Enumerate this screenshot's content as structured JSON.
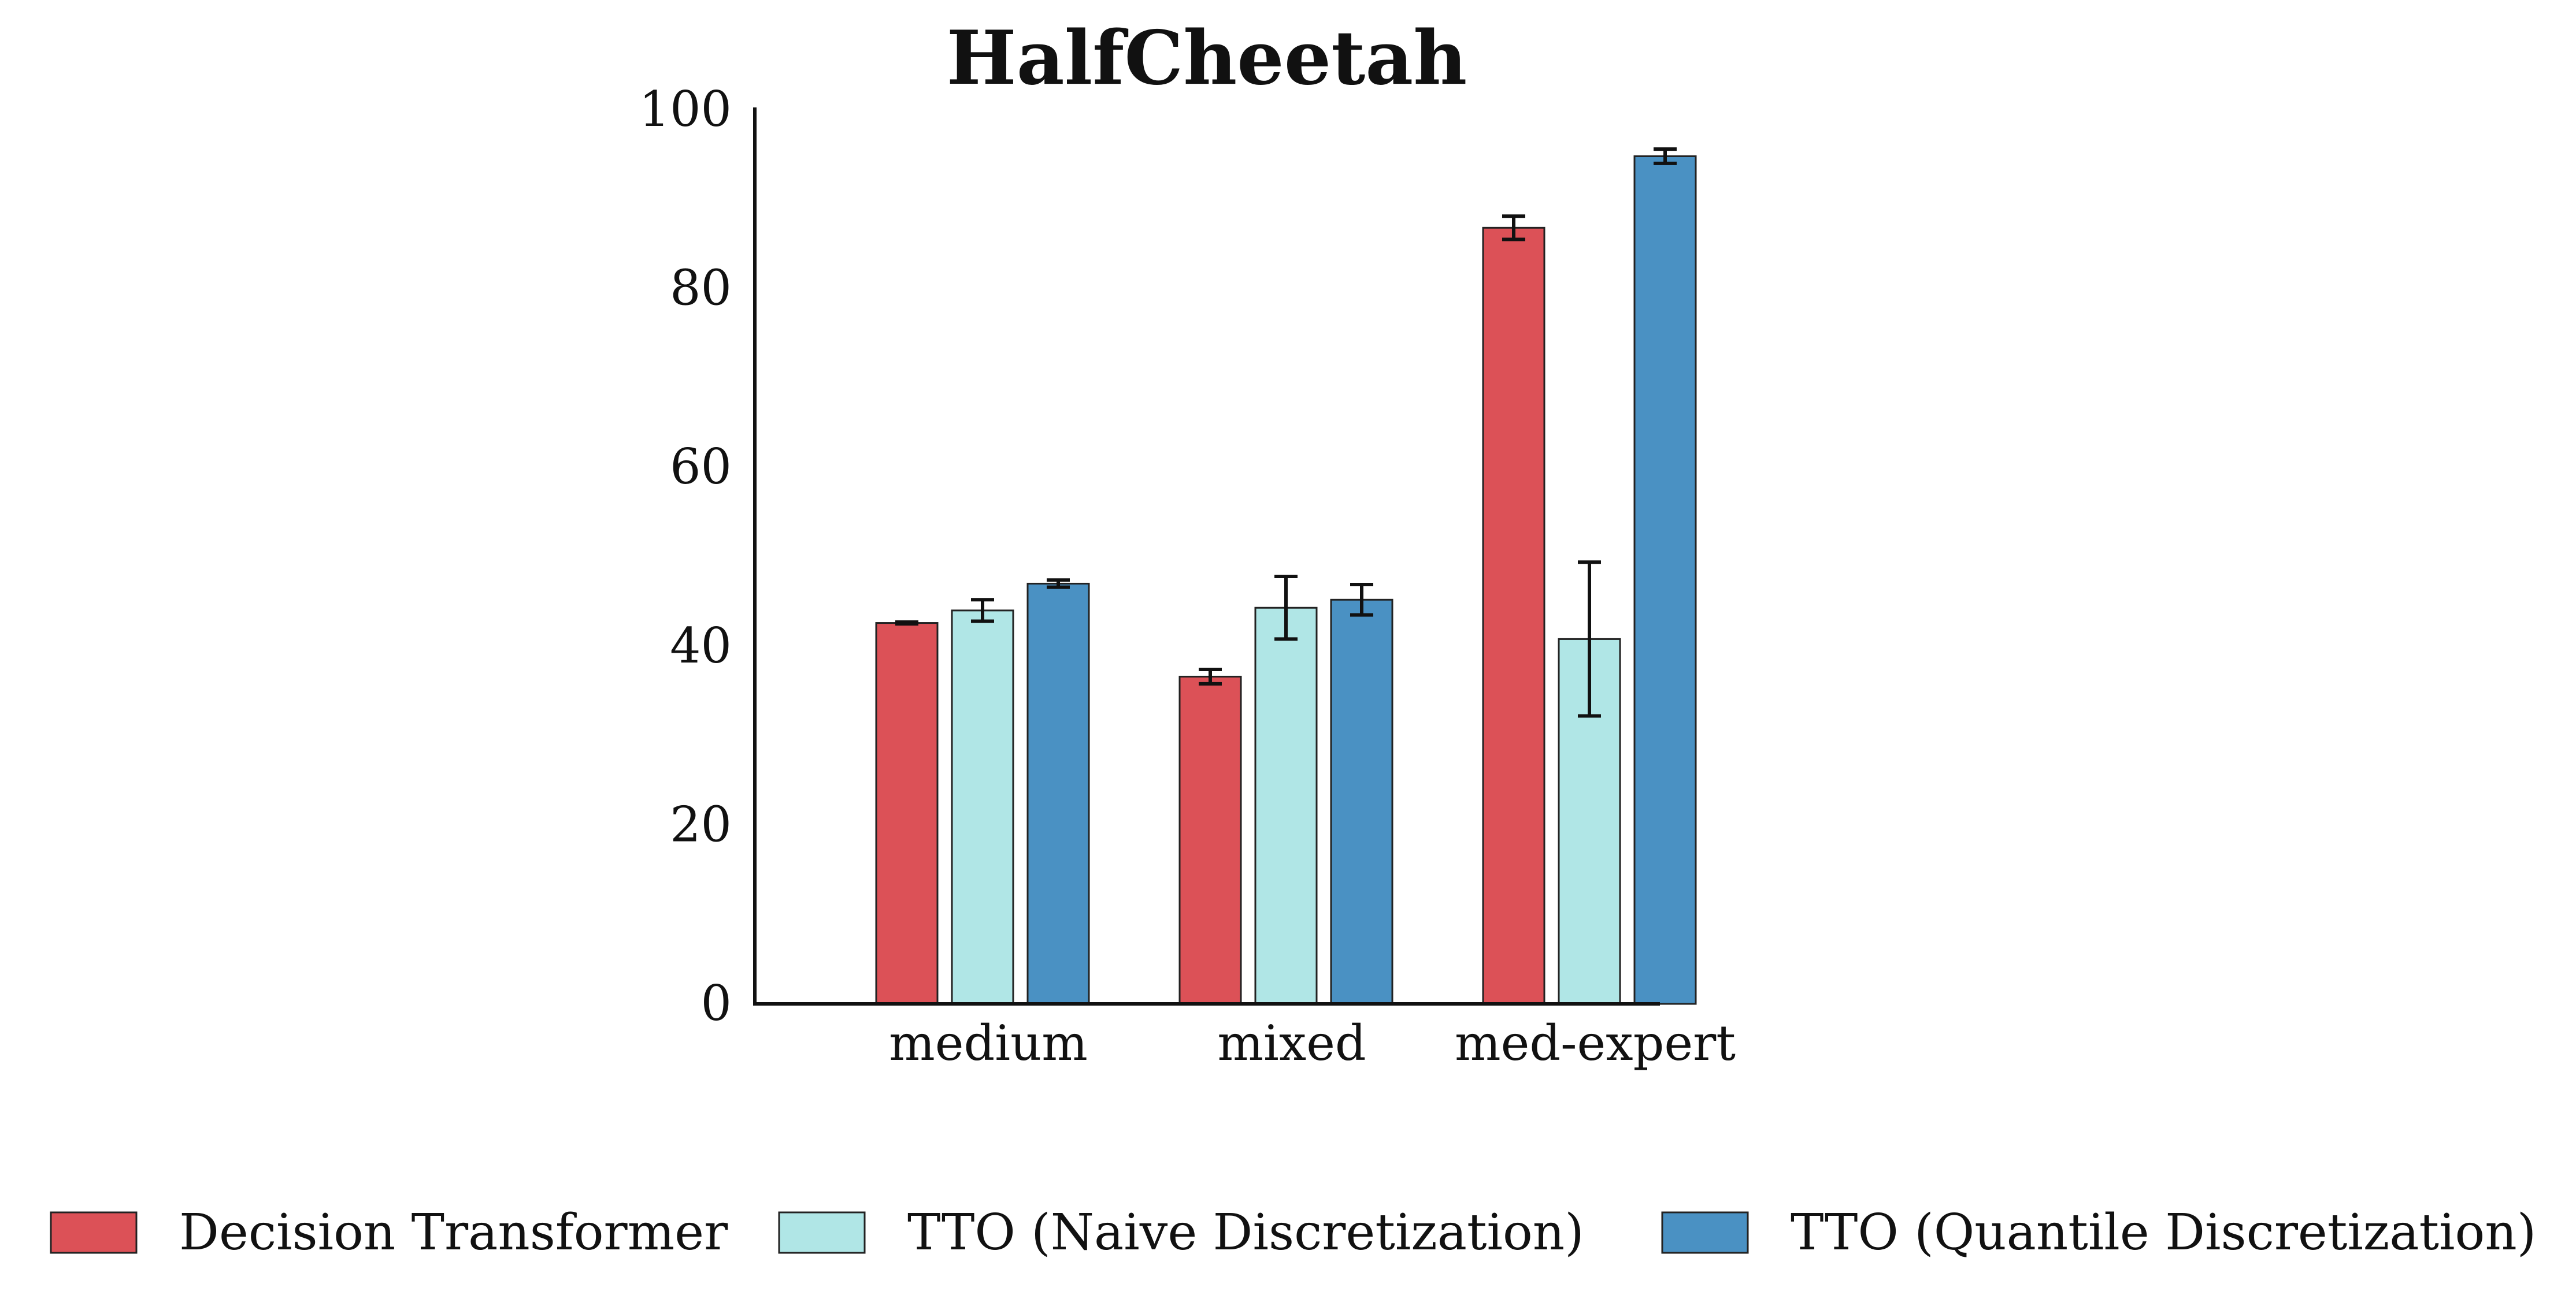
{
  "chart_data": {
    "type": "bar",
    "title": "HalfCheetah",
    "xlabel": "",
    "ylabel": "",
    "categories": [
      "medium",
      "mixed",
      "med-expert"
    ],
    "ylim": [
      0,
      100
    ],
    "yticks": [
      0,
      20,
      40,
      60,
      80,
      100
    ],
    "grid": false,
    "legend_position": "bottom",
    "series": [
      {
        "name": "Decision Transformer",
        "color": "#dc5157",
        "values": [
          42.6,
          36.6,
          86.8
        ],
        "errors": [
          0.1,
          0.8,
          1.3
        ]
      },
      {
        "name": "TTO (Naive Discretization)",
        "color": "#b0e6e6",
        "values": [
          44.0,
          44.3,
          40.8
        ],
        "errors": [
          1.2,
          3.5,
          8.6
        ]
      },
      {
        "name": "TTO (Quantile Discretization)",
        "color": "#4a91c3",
        "values": [
          47.0,
          45.2,
          94.8
        ],
        "errors": [
          0.4,
          1.7,
          0.8
        ]
      }
    ]
  }
}
